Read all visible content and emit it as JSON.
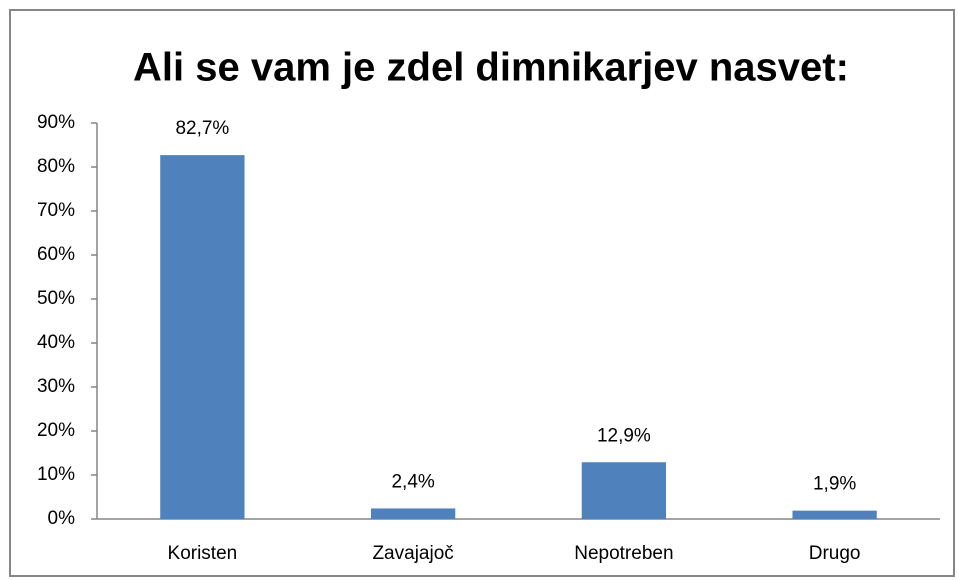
{
  "chart_data": {
    "type": "bar",
    "title": "Ali se vam je zdel dimnikarjev nasvet:",
    "categories": [
      "Koristen",
      "Zavajajoč",
      "Nepotreben",
      "Drugo"
    ],
    "values": [
      82.7,
      2.4,
      12.9,
      1.9
    ],
    "value_labels": [
      "82,7%",
      "2,4%",
      "12,9%",
      "1,9%"
    ],
    "color": "#4f81bd",
    "ylim": [
      0,
      90
    ],
    "yticks": [
      {
        "value": 0,
        "label": "0%"
      },
      {
        "value": 10,
        "label": "10%"
      },
      {
        "value": 20,
        "label": "20%"
      },
      {
        "value": 30,
        "label": "30%"
      },
      {
        "value": 40,
        "label": "40%"
      },
      {
        "value": 50,
        "label": "50%"
      },
      {
        "value": 60,
        "label": "60%"
      },
      {
        "value": 70,
        "label": "70%"
      },
      {
        "value": 80,
        "label": "80%"
      },
      {
        "value": 90,
        "label": "90%"
      }
    ],
    "grid": false
  }
}
